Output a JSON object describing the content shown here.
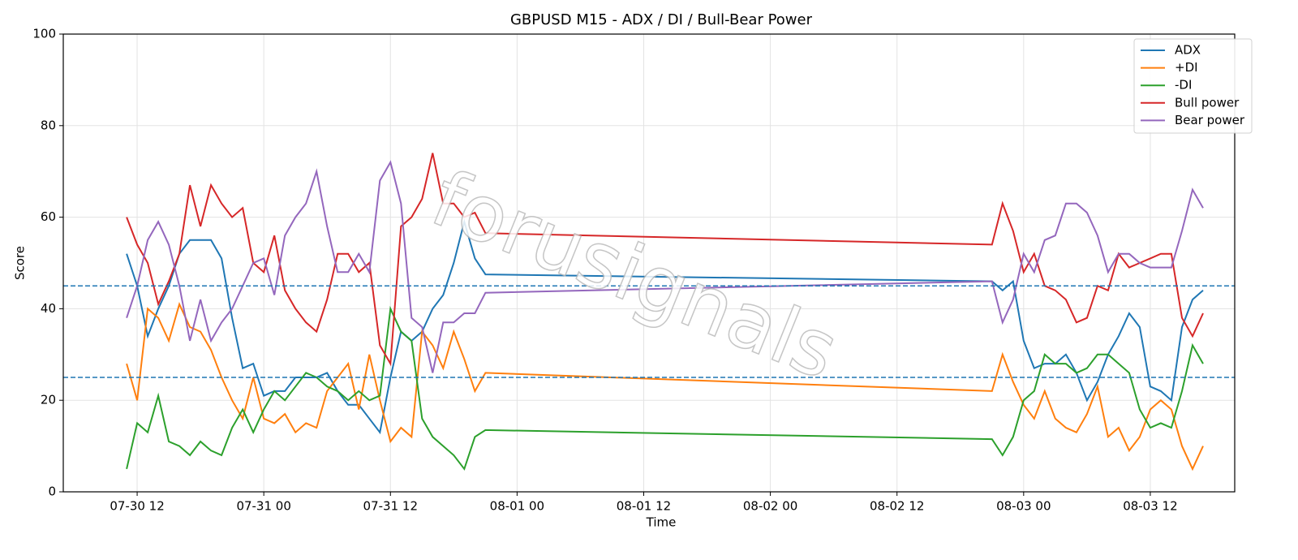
{
  "chart_data": {
    "type": "line",
    "title": "GBPUSD M15 - ADX / DI / Bull-Bear Power",
    "x_label": "Time",
    "y_label": "Score",
    "watermark": "forusignals",
    "x": [
      "07-30 11",
      "07-30 12",
      "07-30 13",
      "07-30 14",
      "07-30 15",
      "07-30 16",
      "07-30 17",
      "07-30 18",
      "07-30 19",
      "07-30 20",
      "07-30 21",
      "07-30 22",
      "07-30 23",
      "07-31 00",
      "07-31 01",
      "07-31 02",
      "07-31 03",
      "07-31 04",
      "07-31 05",
      "07-31 06",
      "07-31 07",
      "07-31 08",
      "07-31 09",
      "07-31 10",
      "07-31 11",
      "07-31 12",
      "07-31 13",
      "07-31 14",
      "07-31 15",
      "07-31 16",
      "07-31 17",
      "07-31 18",
      "07-31 19",
      "07-31 20",
      "07-31 21",
      "08-02 21",
      "08-02 22",
      "08-02 23",
      "08-03 00",
      "08-03 01",
      "08-03 02",
      "08-03 03",
      "08-03 04",
      "08-03 05",
      "08-03 06",
      "08-03 07",
      "08-03 08",
      "08-03 09",
      "08-03 10",
      "08-03 11",
      "08-03 12",
      "08-03 13",
      "08-03 14",
      "08-03 15",
      "08-03 16",
      "08-03 17"
    ],
    "series": [
      {
        "name": "ADX",
        "color": "#1f77b4",
        "values": [
          52,
          45,
          34,
          40,
          45,
          52,
          55,
          55,
          55,
          51,
          38,
          27,
          28,
          21,
          22,
          22,
          25,
          25,
          25,
          26,
          22,
          19,
          19,
          16,
          13,
          25,
          35,
          33,
          35,
          40,
          43,
          50,
          59,
          51,
          47.5,
          46,
          44,
          46,
          33,
          27,
          28,
          28,
          30,
          26,
          20,
          24,
          30,
          34,
          39,
          36,
          23,
          22,
          20,
          36,
          42,
          44
        ]
      },
      {
        "name": "+DI",
        "color": "#ff7f0e",
        "values": [
          28,
          20,
          40,
          38,
          33,
          41,
          36,
          35,
          31,
          25,
          20,
          16,
          25,
          16,
          15,
          17,
          13,
          15,
          14,
          22,
          25,
          28,
          18,
          30,
          20,
          11,
          14,
          12,
          35,
          32,
          27,
          35,
          29,
          22,
          26,
          22,
          30,
          24,
          19,
          16,
          22,
          16,
          14,
          13,
          17,
          23,
          12,
          14,
          9,
          12,
          18,
          20,
          18,
          10,
          5,
          10
        ]
      },
      {
        "name": "-DI",
        "color": "#2ca02c",
        "values": [
          5,
          15,
          13,
          21,
          11,
          10,
          8,
          11,
          9,
          8,
          14,
          18,
          13,
          18,
          22,
          20,
          23,
          26,
          25,
          23,
          22,
          20,
          22,
          20,
          21,
          40,
          35,
          33,
          16,
          12,
          10,
          8,
          5,
          12,
          13.5,
          11.5,
          8,
          12,
          20,
          22,
          30,
          28,
          28,
          26,
          27,
          30,
          30,
          28,
          26,
          18,
          14,
          15,
          14,
          22,
          32,
          28
        ]
      },
      {
        "name": "Bull power",
        "color": "#d62728",
        "values": [
          60,
          54,
          50,
          41,
          46,
          52,
          67,
          58,
          67,
          63,
          60,
          62,
          50,
          48,
          56,
          44,
          40,
          37,
          35,
          42,
          52,
          52,
          48,
          50,
          32,
          28,
          58,
          60,
          64,
          74,
          63,
          63,
          60,
          61,
          56.5,
          54,
          63,
          57,
          48,
          52,
          45,
          44,
          42,
          37,
          38,
          45,
          44,
          52,
          49,
          50,
          51,
          52,
          52,
          38,
          34,
          39
        ]
      },
      {
        "name": "Bear power",
        "color": "#9467bd",
        "values": [
          38,
          45,
          55,
          59,
          54,
          45,
          33,
          42,
          33,
          37,
          40,
          45,
          50,
          51,
          43,
          56,
          60,
          63,
          70,
          58,
          48,
          48,
          52,
          48,
          68,
          72,
          63,
          38,
          36,
          26,
          37,
          37,
          39,
          39,
          43.5,
          46,
          37,
          42,
          52,
          48,
          55,
          56,
          63,
          63,
          61,
          56,
          48,
          52,
          52,
          50,
          49,
          49,
          49,
          57,
          66,
          62
        ]
      }
    ],
    "hlines": [
      25,
      45
    ],
    "xlim": [
      "07-30 05",
      "08-03 20"
    ],
    "xticks": [
      "07-30 12",
      "07-31 00",
      "07-31 12",
      "08-01 00",
      "08-01 12",
      "08-02 00",
      "08-02 12",
      "08-03 00",
      "08-03 12"
    ],
    "ylim": [
      0,
      100
    ],
    "yticks": [
      0,
      20,
      40,
      60,
      80,
      100
    ],
    "grid": true,
    "legend": "upper right"
  }
}
